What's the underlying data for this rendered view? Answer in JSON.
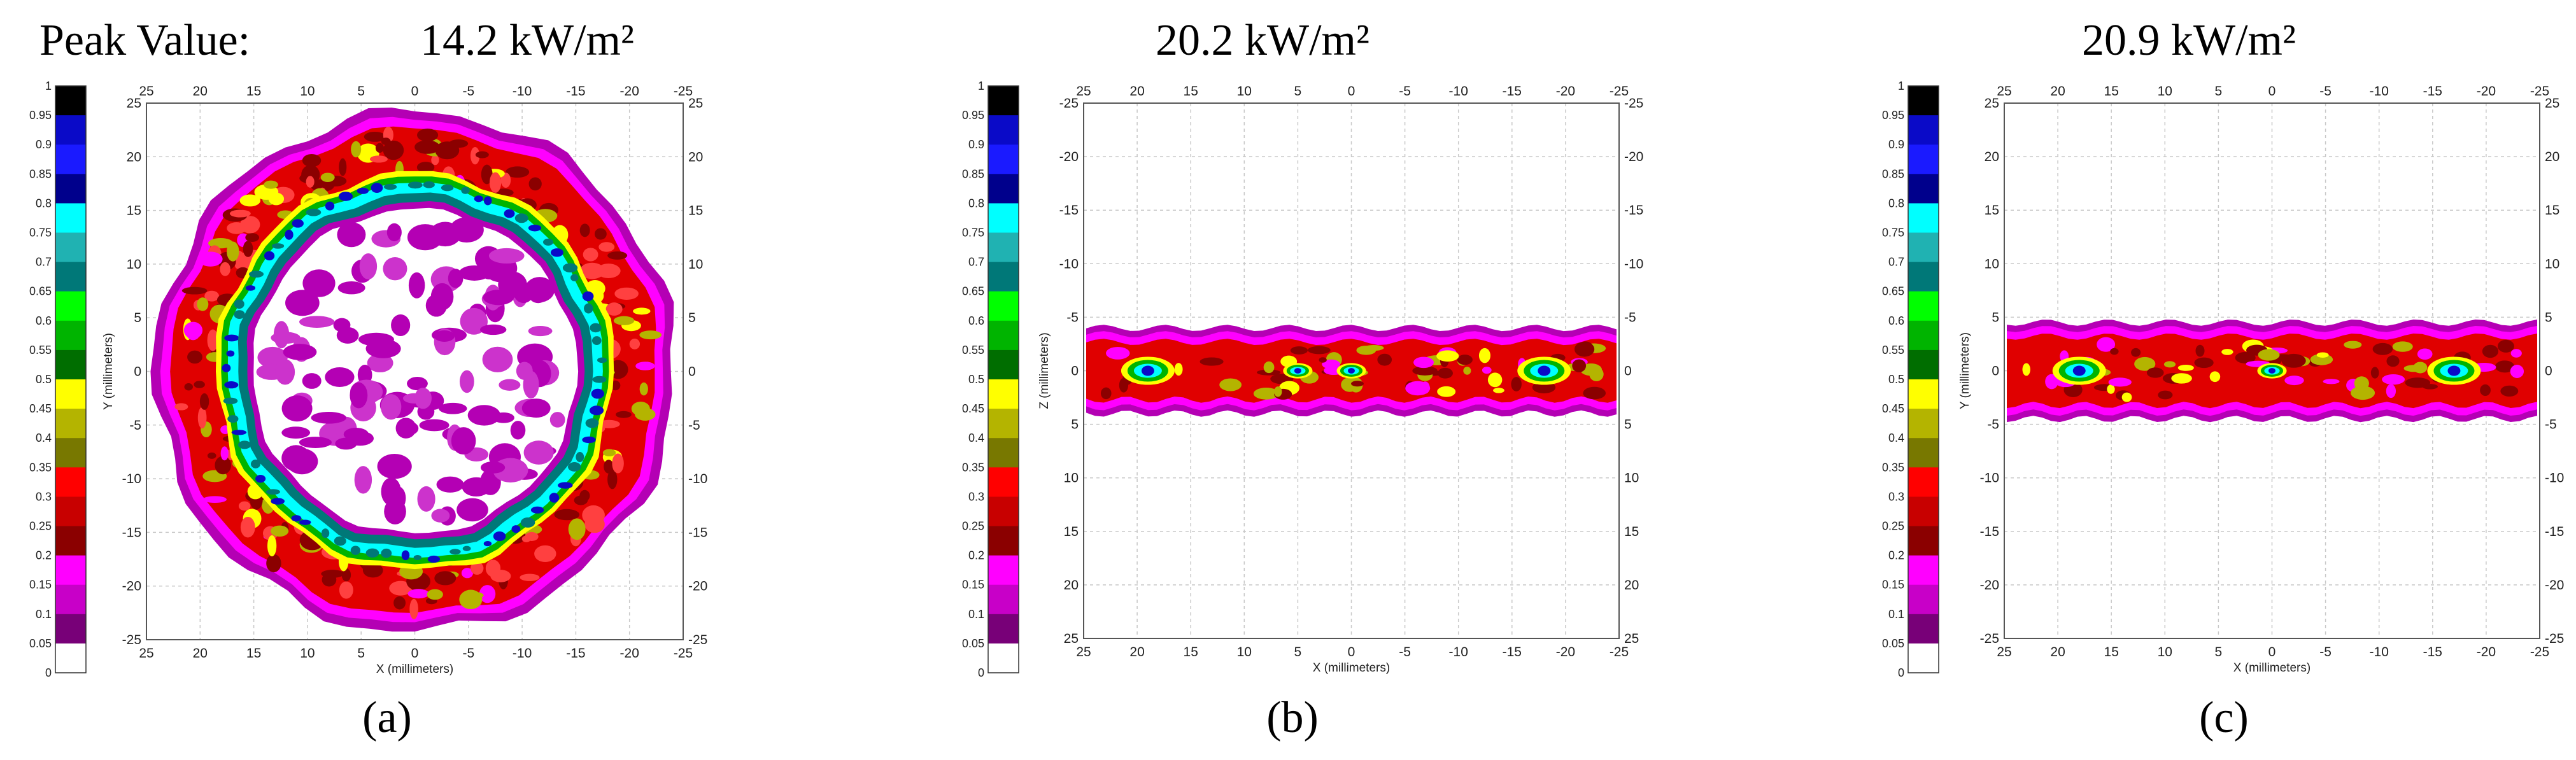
{
  "peak_label": "Peak Value:",
  "colorbar": {
    "ticks": [
      "1",
      "0.95",
      "0.9",
      "0.85",
      "0.8",
      "0.75",
      "0.7",
      "0.65",
      "0.6",
      "0.55",
      "0.5",
      "0.45",
      "0.4",
      "0.35",
      "0.3",
      "0.25",
      "0.2",
      "0.15",
      "0.1",
      "0.05",
      "0"
    ],
    "colors": [
      "#000000",
      "#0a0ac8",
      "#1a1aff",
      "#00008c",
      "#00ffff",
      "#20b2b2",
      "#007878",
      "#00ff00",
      "#00b400",
      "#006e00",
      "#ffff00",
      "#b4b400",
      "#787800",
      "#ff0000",
      "#c80000",
      "#8b0000",
      "#ff00ff",
      "#c800c8",
      "#780078",
      "#ffffff"
    ]
  },
  "chart_data": [
    {
      "type": "heatmap",
      "panel": "(a)",
      "peak_value": "14.2 kW/m²",
      "xlabel": "X (millimeters)",
      "ylabel": "Y (millimeters)",
      "xlim": [
        25,
        -25
      ],
      "ylim": [
        -25,
        25
      ],
      "x_ticks": [
        "25",
        "20",
        "15",
        "10",
        "5",
        "0",
        "-5",
        "-10",
        "-15",
        "-20",
        "-25"
      ],
      "y_ticks": [
        "25",
        "20",
        "15",
        "10",
        "5",
        "0",
        "-5",
        "-10",
        "-15",
        "-20",
        "-25"
      ],
      "pattern": "annulus",
      "pattern_outer_radius_mm": 24,
      "pattern_inner_radius_mm": 15,
      "mid_ring_radius_mm": 17
    },
    {
      "type": "heatmap",
      "panel": "(b)",
      "peak_value": "20.2 kW/m²",
      "xlabel": "X (millimeters)",
      "ylabel": "Z (millimeters)",
      "xlim": [
        25,
        -25
      ],
      "ylim": [
        25,
        -25
      ],
      "x_ticks": [
        "25",
        "20",
        "15",
        "10",
        "5",
        "0",
        "-5",
        "-10",
        "-15",
        "-20",
        "-25"
      ],
      "y_ticks": [
        "-25",
        "-20",
        "-15",
        "-10",
        "-5",
        "0",
        "5",
        "10",
        "15",
        "20",
        "25"
      ],
      "pattern": "horizontal band",
      "band_half_width_mm": 4,
      "hot_spots_x_mm": [
        19,
        5,
        0,
        -18
      ]
    },
    {
      "type": "heatmap",
      "panel": "(c)",
      "peak_value": "20.9 kW/m²",
      "xlabel": "X (millimeters)",
      "ylabel": "Y (millimeters)",
      "xlim": [
        25,
        -25
      ],
      "ylim": [
        -25,
        25
      ],
      "x_ticks": [
        "25",
        "20",
        "15",
        "10",
        "5",
        "0",
        "-5",
        "-10",
        "-15",
        "-20",
        "-25"
      ],
      "y_ticks": [
        "25",
        "20",
        "15",
        "10",
        "5",
        "0",
        "-5",
        "-10",
        "-15",
        "-20",
        "-25"
      ],
      "pattern": "horizontal band",
      "band_half_width_mm": 4.5,
      "hot_spots_x_mm": [
        18,
        0,
        -17
      ]
    }
  ]
}
